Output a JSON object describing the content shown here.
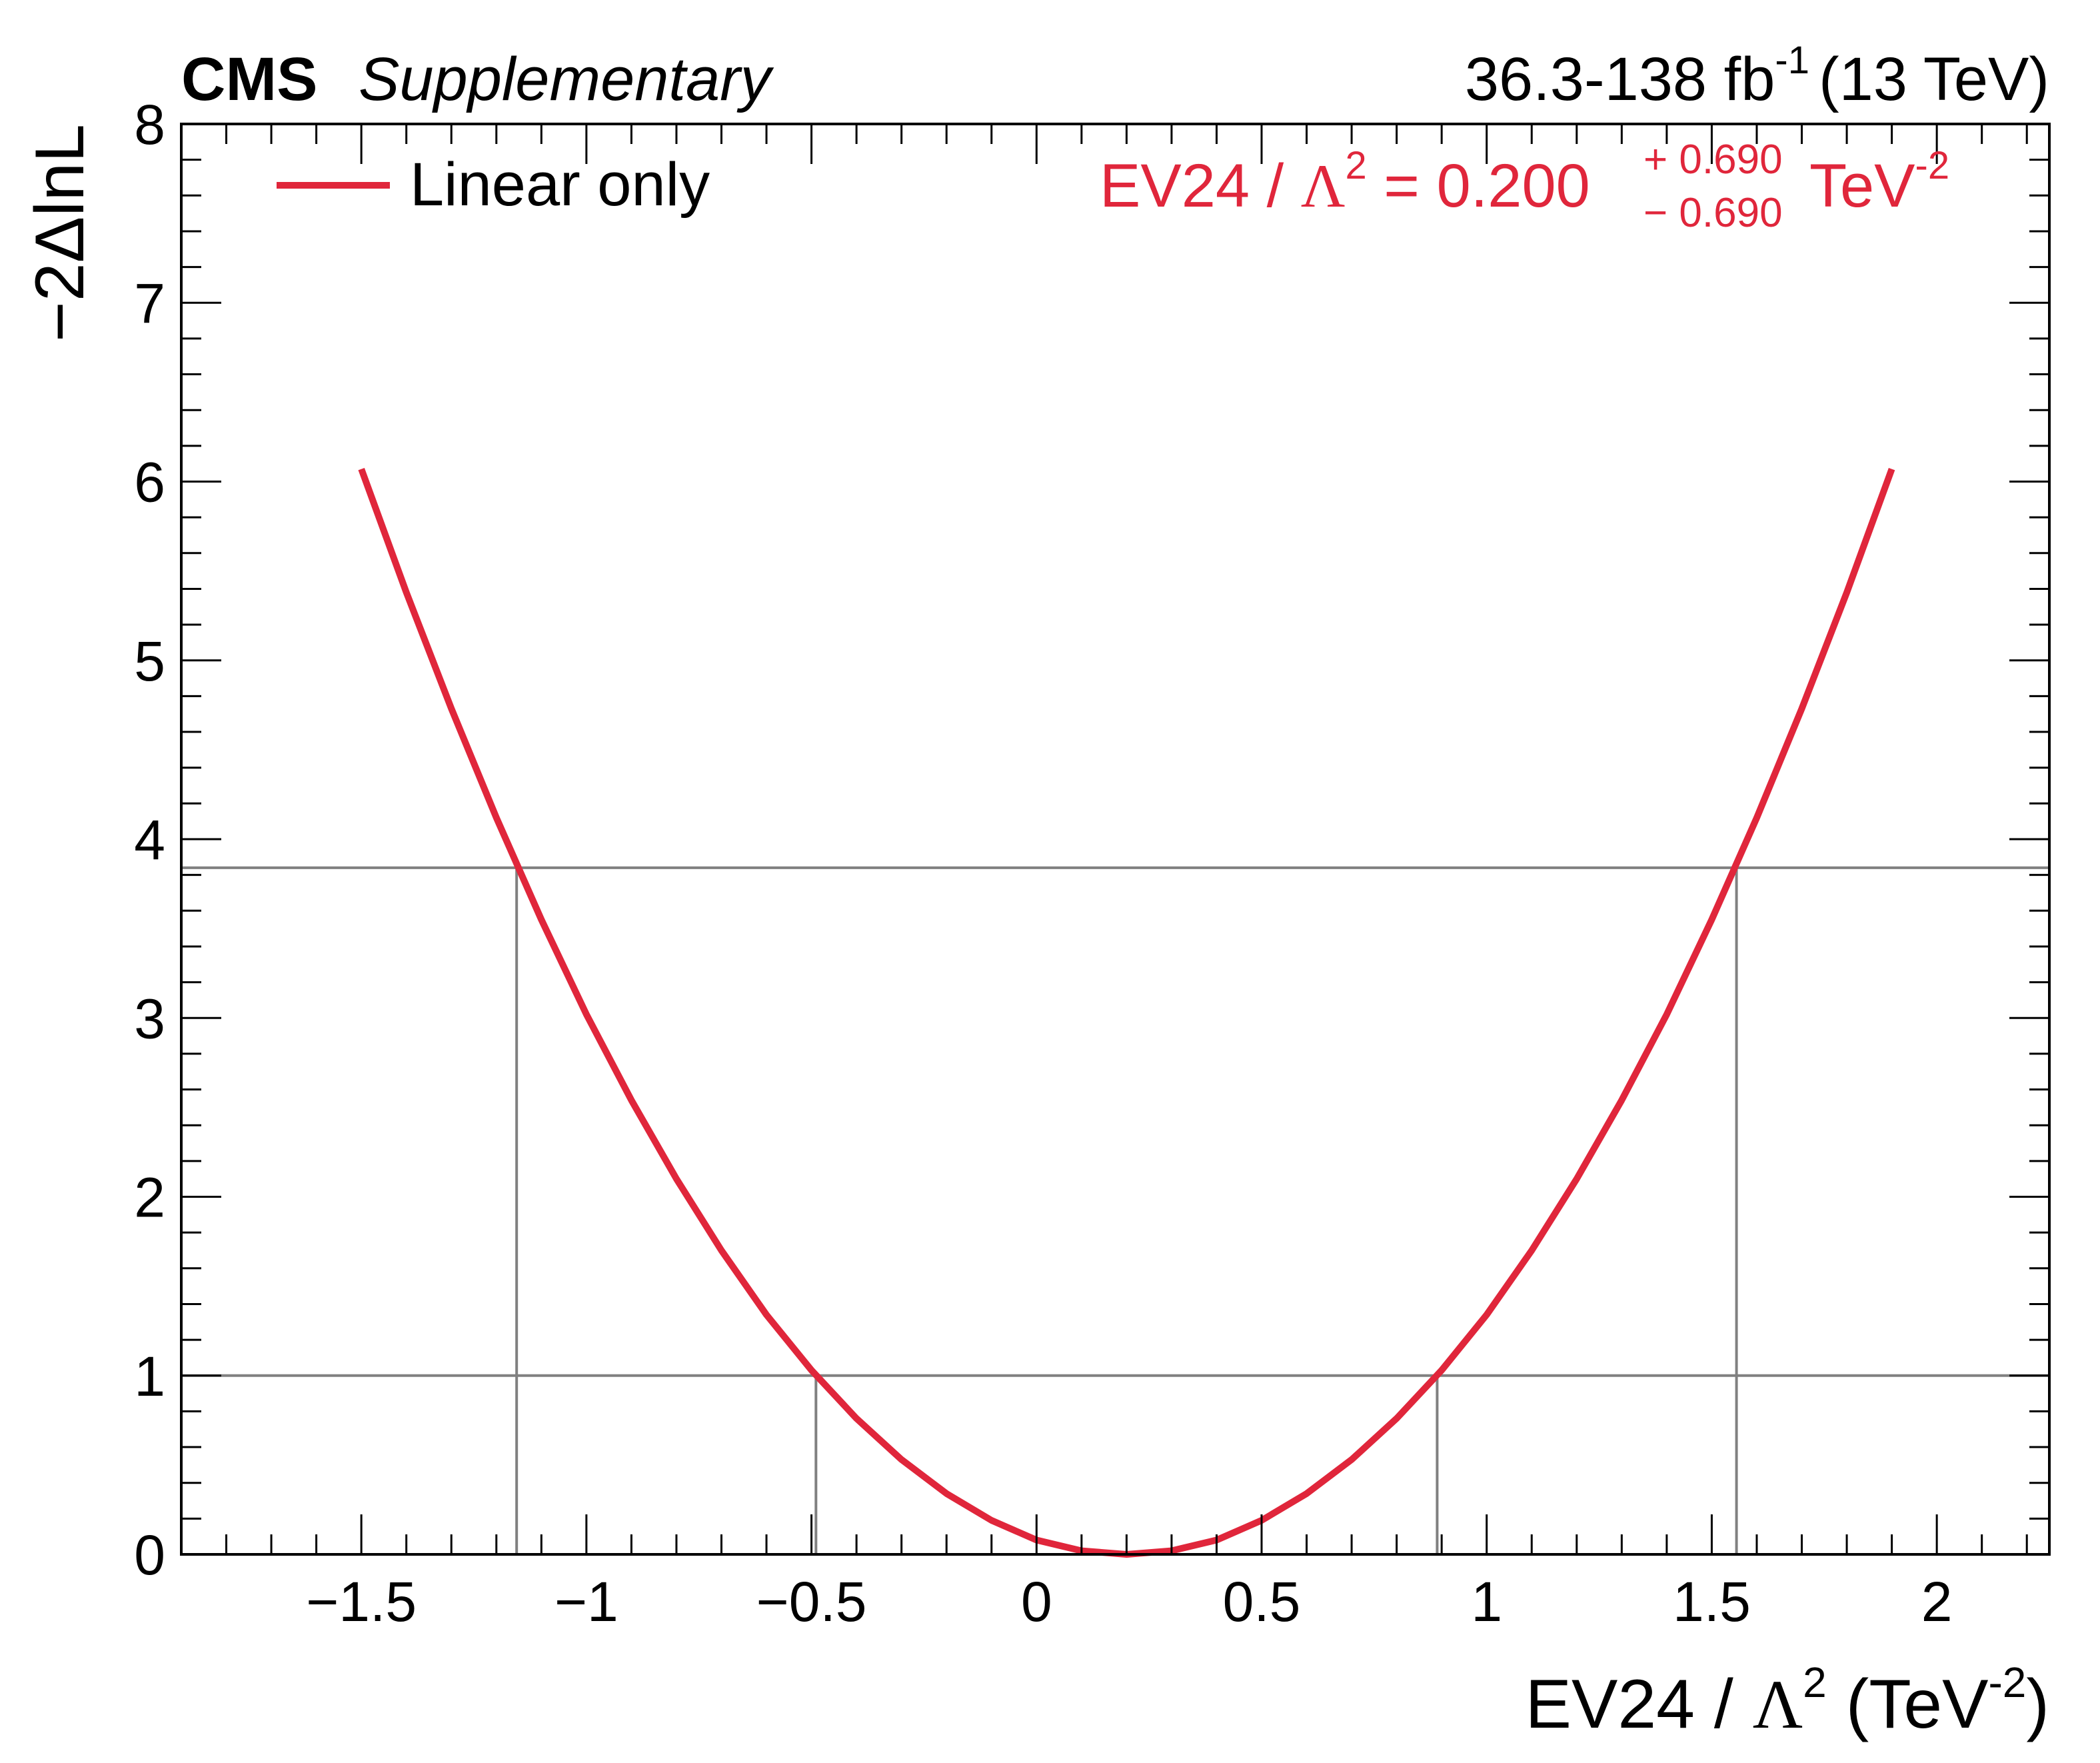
{
  "chart_data": {
    "type": "line",
    "header": {
      "experiment": "CMS",
      "label": "Supplementary",
      "lumi_text": "36.3-138 fb",
      "lumi_sup": "-1",
      "energy": "(13 TeV)"
    },
    "xlabel": {
      "main": "EV24 / ",
      "lambda": "Λ",
      "sq": "2",
      "unit_open": " (TeV",
      "unit_sup": "-2",
      "unit_close": ")"
    },
    "ylabel": "−2ΔlnL",
    "xlim": [
      -1.9,
      2.25
    ],
    "ylim": [
      0,
      8
    ],
    "x_ticks": [
      {
        "value": -1.5,
        "label": "−1.5"
      },
      {
        "value": -1.0,
        "label": "−1"
      },
      {
        "value": -0.5,
        "label": "−0.5"
      },
      {
        "value": 0.0,
        "label": "0"
      },
      {
        "value": 0.5,
        "label": "0.5"
      },
      {
        "value": 1.0,
        "label": "1"
      },
      {
        "value": 1.5,
        "label": "1.5"
      },
      {
        "value": 2.0,
        "label": "2"
      }
    ],
    "y_ticks": [
      {
        "value": 0,
        "label": "0"
      },
      {
        "value": 1,
        "label": "1"
      },
      {
        "value": 2,
        "label": "2"
      },
      {
        "value": 3,
        "label": "3"
      },
      {
        "value": 4,
        "label": "4"
      },
      {
        "value": 5,
        "label": "5"
      },
      {
        "value": 6,
        "label": "6"
      },
      {
        "value": 7,
        "label": "7"
      },
      {
        "value": 8,
        "label": "8"
      }
    ],
    "legend": {
      "position": "top-left",
      "entries": [
        {
          "label": "Linear only",
          "color": "#e0263b"
        }
      ]
    },
    "series": [
      {
        "name": "Linear only",
        "color": "#e0263b",
        "best_fit": 0.2,
        "x": [
          -1.5,
          -1.4,
          -1.3,
          -1.2,
          -1.1,
          -1.0,
          -0.9,
          -0.8,
          -0.7,
          -0.6,
          -0.5,
          -0.4,
          -0.3,
          -0.2,
          -0.1,
          0.0,
          0.1,
          0.2,
          0.3,
          0.4,
          0.5,
          0.6,
          0.7,
          0.8,
          0.9,
          1.0,
          1.1,
          1.2,
          1.3,
          1.4,
          1.5,
          1.6,
          1.7,
          1.8,
          1.9
        ],
        "y": [
          6.07,
          5.38,
          4.73,
          4.12,
          3.55,
          3.02,
          2.54,
          2.1,
          1.7,
          1.34,
          1.03,
          0.76,
          0.53,
          0.34,
          0.19,
          0.08,
          0.02,
          0.0,
          0.02,
          0.08,
          0.19,
          0.34,
          0.53,
          0.76,
          1.03,
          1.34,
          1.7,
          2.1,
          2.54,
          3.02,
          3.55,
          4.12,
          4.73,
          5.38,
          6.07
        ]
      }
    ],
    "reference_lines": [
      {
        "y": 1.0,
        "x_low": -0.49,
        "x_high": 0.89,
        "color": "#808080"
      },
      {
        "y": 3.84,
        "x_low": -1.155,
        "x_high": 1.555,
        "color": "#808080"
      }
    ],
    "annotation": {
      "color": "#e0263b",
      "lhs": "EV24 / ",
      "lambda": "Λ",
      "sq": "2",
      "eq": " = 0.200",
      "err_up": "+ 0.690",
      "err_down": "− 0.690",
      "unit": "TeV",
      "unit_sup": "-2"
    }
  }
}
